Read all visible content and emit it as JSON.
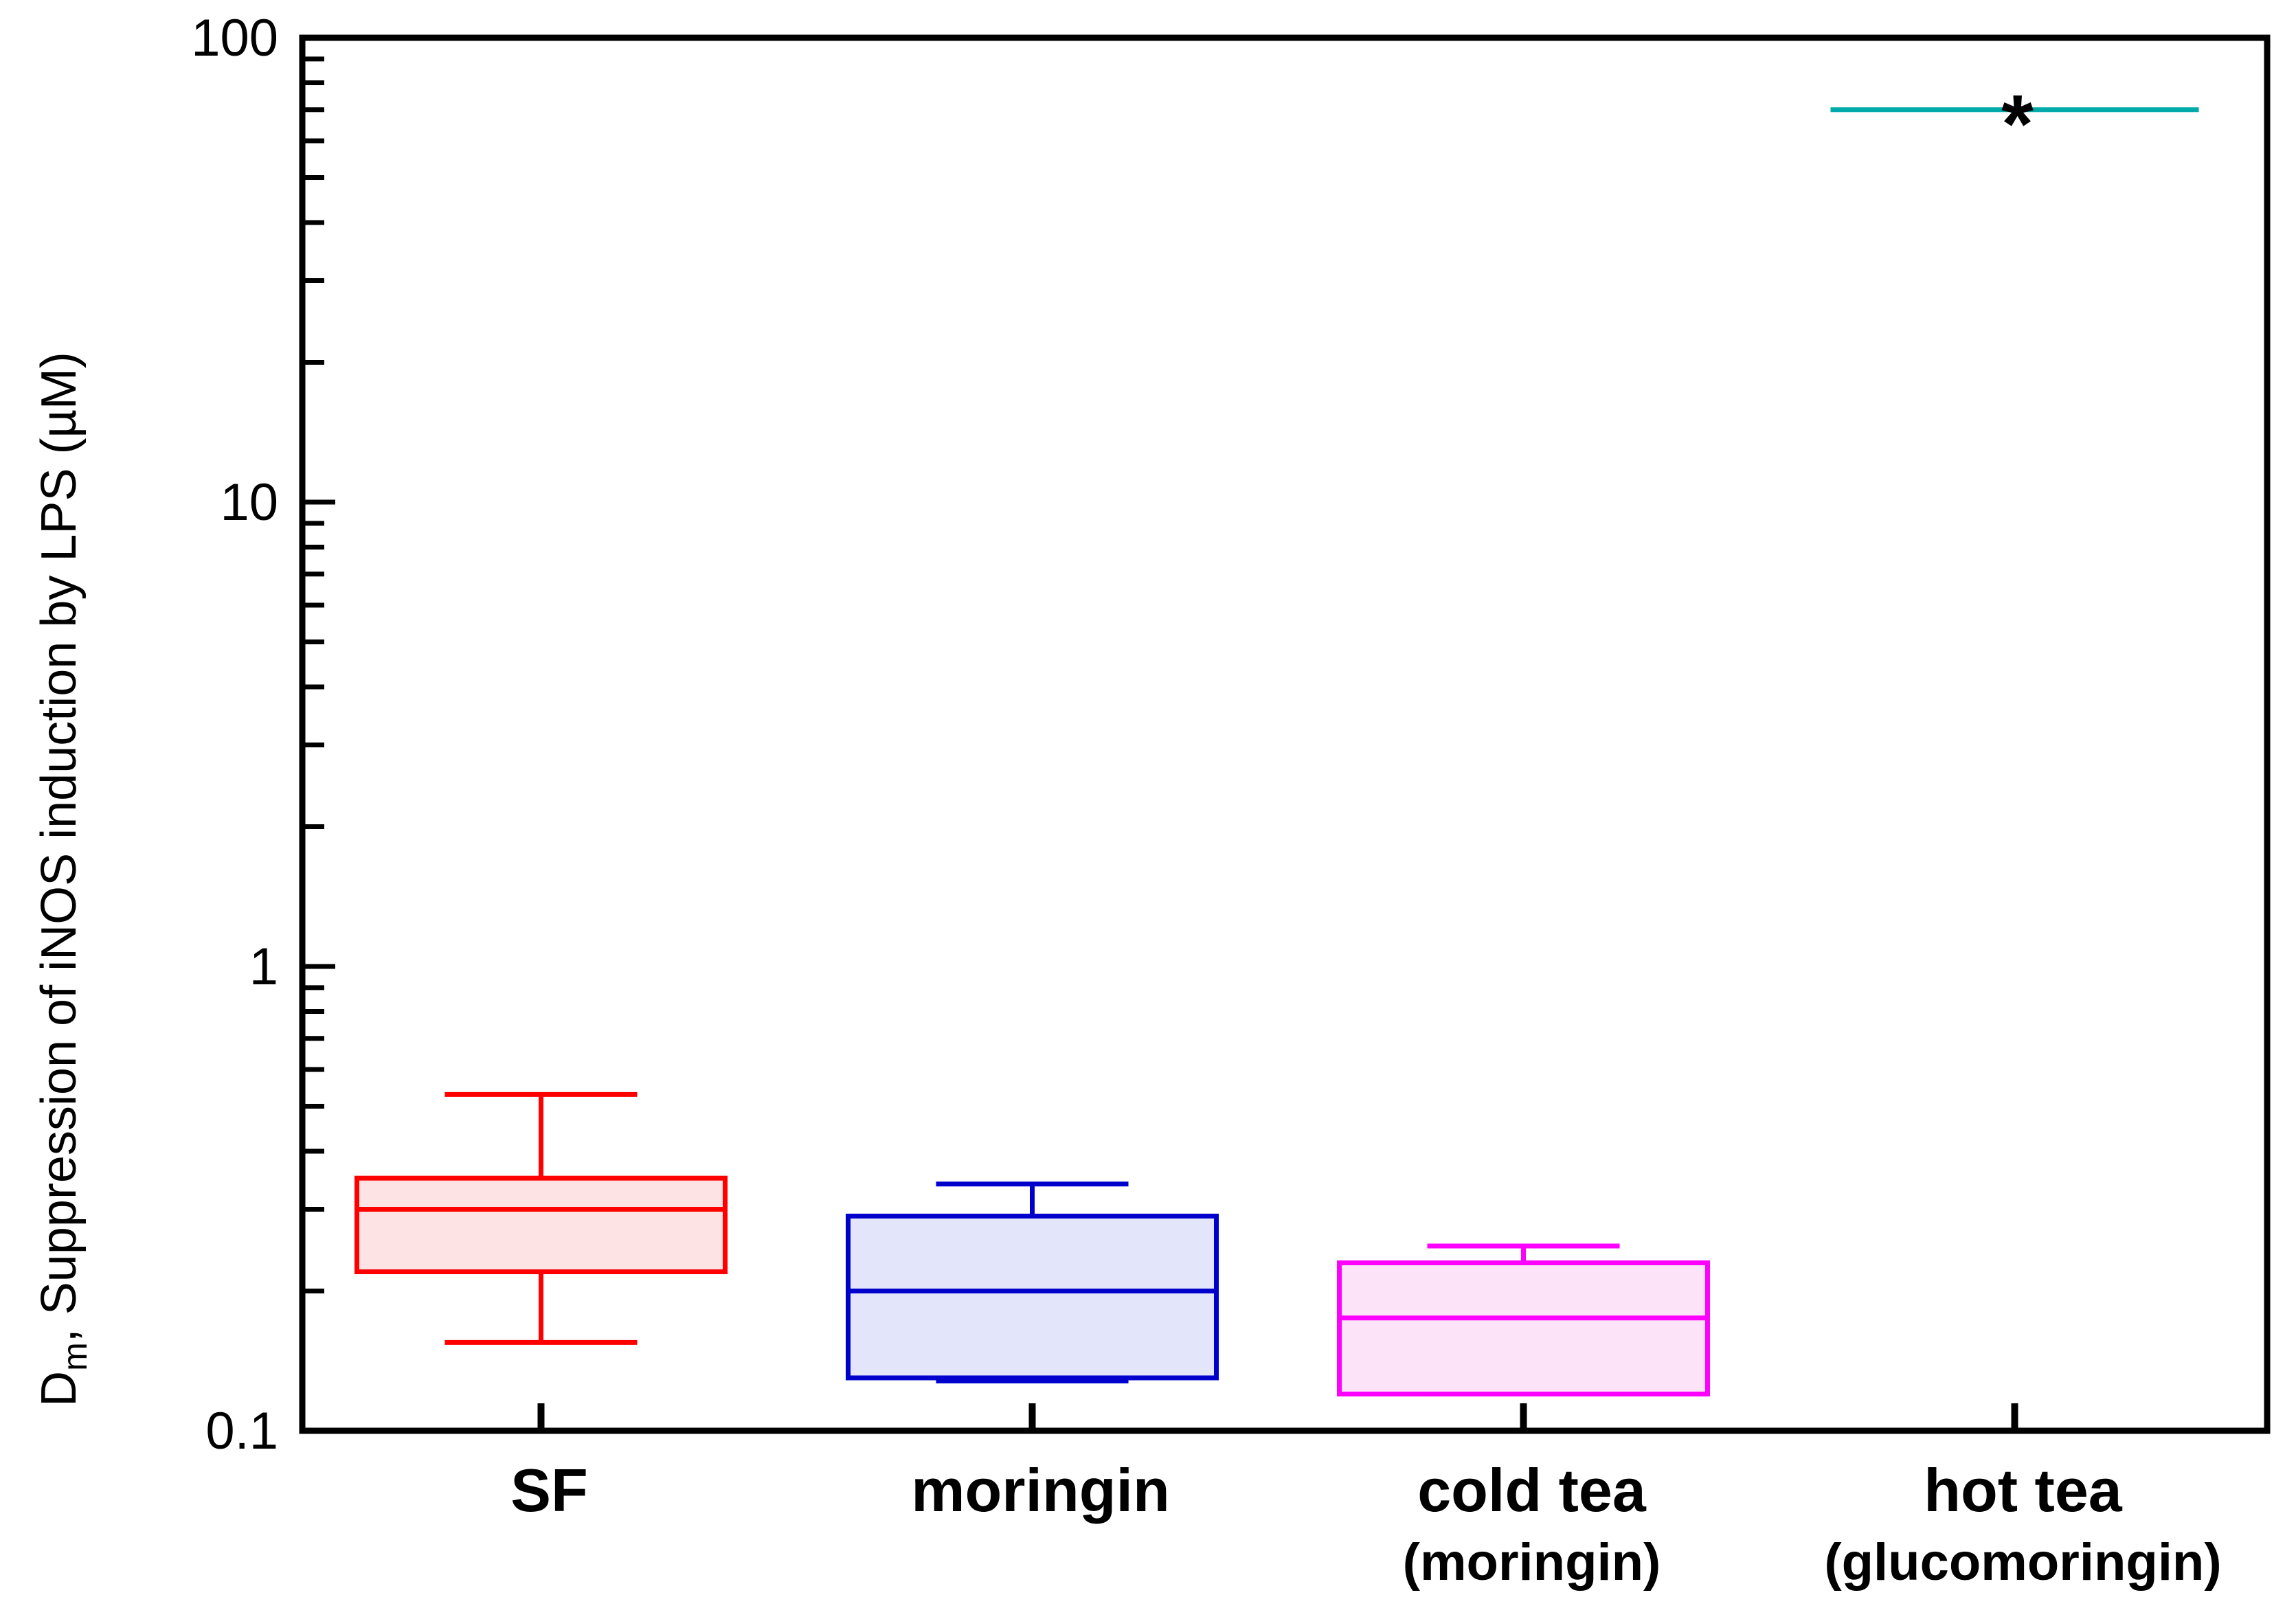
{
  "chart_data": {
    "type": "boxplot",
    "title": "",
    "xlabel": "",
    "ylabel": {
      "main": "D",
      "subscript": "m",
      "rest": ", Suppression of iNOS induction by LPS (µM)"
    },
    "yscale": "log",
    "ylim": [
      0.1,
      100
    ],
    "yticks": [
      {
        "value": 0.1,
        "label": "0.1"
      },
      {
        "value": 1,
        "label": "1"
      },
      {
        "value": 10,
        "label": "10"
      },
      {
        "value": 100,
        "label": "100"
      }
    ],
    "categories": [
      {
        "label": "SF",
        "sublabel": ""
      },
      {
        "label": "moringin",
        "sublabel": ""
      },
      {
        "label": "cold tea",
        "sublabel": "(moringin)"
      },
      {
        "label": "hot tea",
        "sublabel": "(glucomoringin)"
      }
    ],
    "series": [
      {
        "name": "SF",
        "color": "#ff0000",
        "fill": "#fde3e3",
        "whisker_low": 0.155,
        "q1": 0.22,
        "median": 0.3,
        "q3": 0.35,
        "whisker_high": 0.53
      },
      {
        "name": "moringin",
        "color": "#0000cc",
        "fill": "#e3e6fa",
        "whisker_low": 0.128,
        "q1": 0.13,
        "median": 0.2,
        "q3": 0.29,
        "whisker_high": 0.34
      },
      {
        "name": "cold tea (moringin)",
        "color": "#ff00ff",
        "fill": "#fde3f7",
        "whisker_low": 0.12,
        "q1": 0.12,
        "median": 0.175,
        "q3": 0.23,
        "whisker_high": 0.25
      },
      {
        "name": "hot tea (glucomoringin)",
        "color": "#00aaaa",
        "fill": "none",
        "value": 70,
        "annotation": "*"
      }
    ]
  }
}
